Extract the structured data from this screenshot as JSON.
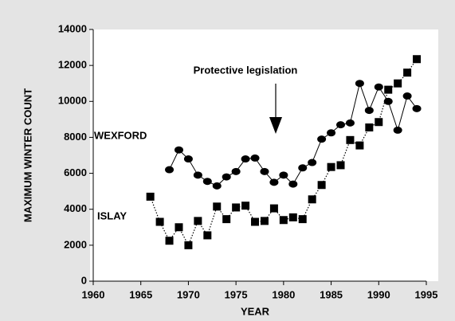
{
  "chart_data": {
    "type": "line",
    "xlabel": "YEAR",
    "ylabel": "MAXIMUM WINTER COUNT",
    "annotation": "Protective legislation",
    "xlim": [
      1960,
      1995
    ],
    "xticks": [
      1960,
      1965,
      1970,
      1975,
      1980,
      1985,
      1990,
      1995
    ],
    "ylim": [
      0,
      14000
    ],
    "yticks": [
      0,
      2000,
      4000,
      6000,
      8000,
      10000,
      12000,
      14000
    ],
    "series": [
      {
        "name": "WEXFORD",
        "color": "#000000",
        "marker": "circle",
        "linestyle": "solid",
        "x": [
          1968,
          1969,
          1970,
          1971,
          1972,
          1973,
          1974,
          1975,
          1976,
          1977,
          1978,
          1979,
          1980,
          1981,
          1982,
          1983,
          1984,
          1985,
          1986,
          1987,
          1988,
          1989,
          1990,
          1991,
          1992,
          1993,
          1994
        ],
        "values": [
          6200,
          7300,
          6800,
          5900,
          5550,
          5300,
          5800,
          6100,
          6800,
          6850,
          6100,
          5500,
          5900,
          5400,
          6300,
          6600,
          7900,
          8250,
          8700,
          8800,
          11000,
          9500,
          10800,
          10000,
          8400,
          10300,
          9600
        ]
      },
      {
        "name": "ISLAY",
        "color": "#000000",
        "marker": "square",
        "linestyle": "dotted",
        "x": [
          1966,
          1967,
          1968,
          1969,
          1970,
          1971,
          1972,
          1973,
          1974,
          1975,
          1976,
          1977,
          1978,
          1979,
          1980,
          1981,
          1982,
          1983,
          1984,
          1985,
          1986,
          1987,
          1988,
          1989,
          1990,
          1991,
          1992,
          1993,
          1994
        ],
        "values": [
          4700,
          3300,
          2250,
          3000,
          2000,
          3350,
          2550,
          4150,
          3450,
          4100,
          4200,
          3300,
          3350,
          4050,
          3400,
          3550,
          3450,
          4550,
          5350,
          6350,
          6450,
          7850,
          7550,
          8550,
          8850,
          10650,
          11000,
          11600,
          12350
        ]
      }
    ]
  }
}
